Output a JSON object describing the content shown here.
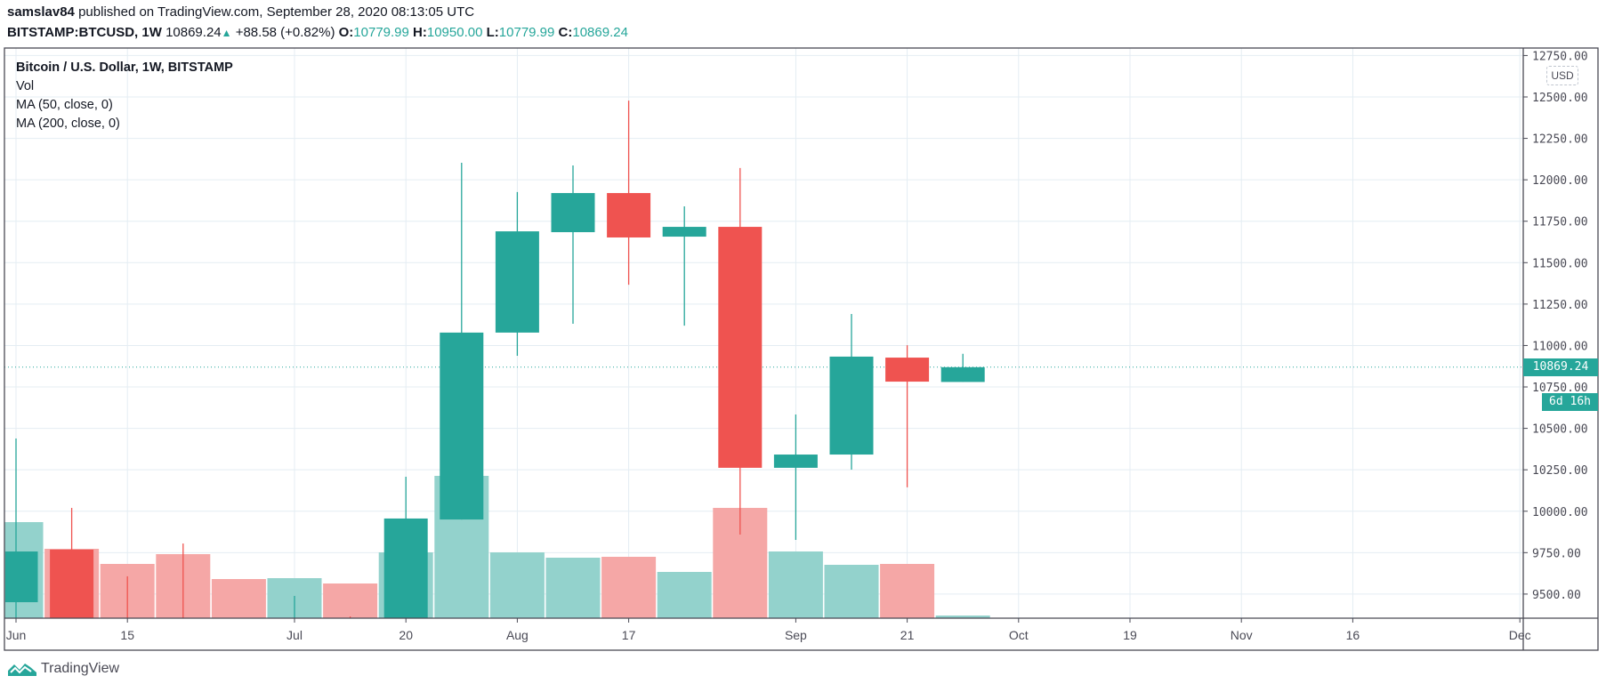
{
  "header": {
    "author": "samslav84",
    "published": "published on TradingView.com, September 28, 2020 08:13:05 UTC",
    "symbol": "BITSTAMP:BTCUSD, 1W",
    "last": "10869.24",
    "change": "+88.58 (+0.82%)",
    "o_label": "O:",
    "o": "10779.99",
    "h_label": "H:",
    "h": "10950.00",
    "l_label": "L:",
    "l": "10779.99",
    "c_label": "C:",
    "c": "10869.24"
  },
  "legend": {
    "title": "Bitcoin / U.S. Dollar, 1W, BITSTAMP",
    "vol": "Vol",
    "ma50": "MA (50, close, 0)",
    "ma200": "MA (200, close, 0)"
  },
  "price_axis": {
    "currency": "USD",
    "last_price_label": "10869.24",
    "countdown": "6d 16h"
  },
  "footer": {
    "brand": "TradingView"
  },
  "colors": {
    "up": "#26a69a",
    "down": "#ef5350",
    "vol_up": "#93d2cc",
    "vol_down": "#f5a7a6",
    "grid": "#e4edf3"
  },
  "chart_data": {
    "type": "candlestick",
    "title": "Bitcoin / U.S. Dollar, 1W, BITSTAMP",
    "ylim": [
      9355,
      12800
    ],
    "y_ticks": [
      9500,
      9750,
      10000,
      10250,
      10500,
      10750,
      11000,
      11250,
      11500,
      11750,
      12000,
      12250,
      12500,
      12750
    ],
    "y_tick_labels": [
      "9500.00",
      "9750.00",
      "10000.00",
      "10250.00",
      "10500.00",
      "10750.00",
      "11000.00",
      "11250.00",
      "11500.00",
      "11750.00",
      "12000.00",
      "12250.00",
      "12500.00",
      "12750.00"
    ],
    "x_range_weeks": [
      -0.2,
      27.3
    ],
    "x_ticks": [
      {
        "label": "Jun",
        "week": 0
      },
      {
        "label": "15",
        "week": 2
      },
      {
        "label": "Jul",
        "week": 5
      },
      {
        "label": "20",
        "week": 7
      },
      {
        "label": "Aug",
        "week": 9
      },
      {
        "label": "17",
        "week": 11
      },
      {
        "label": "Sep",
        "week": 14
      },
      {
        "label": "21",
        "week": 16
      },
      {
        "label": "Oct",
        "week": 18
      },
      {
        "label": "19",
        "week": 20
      },
      {
        "label": "Nov",
        "week": 22
      },
      {
        "label": "16",
        "week": 24
      },
      {
        "label": "Dec",
        "week": 27
      }
    ],
    "last_price": 10869.24,
    "candles": [
      {
        "week": "Jun 1",
        "o": 9451,
        "h": 10439,
        "l": 9300,
        "c": 9757
      },
      {
        "week": "Jun 8",
        "o": 9768,
        "h": 10020,
        "l": 9150,
        "c": 9340
      },
      {
        "week": "Jun 15",
        "o": 9340,
        "h": 9607,
        "l": 8950,
        "c": 9300
      },
      {
        "week": "Jun 22",
        "o": 9300,
        "h": 9805,
        "l": 8800,
        "c": 9000
      },
      {
        "week": "Jun 29",
        "o": 9000,
        "h": 9300,
        "l": 8900,
        "c": 9070
      },
      {
        "week": "Jul 6",
        "o": 9070,
        "h": 9489,
        "l": 9050,
        "c": 9230
      },
      {
        "week": "Jul 13",
        "o": 9230,
        "h": 9365,
        "l": 9000,
        "c": 9160
      },
      {
        "week": "Jul 20",
        "o": 9160,
        "h": 10208,
        "l": 9100,
        "c": 9956
      },
      {
        "week": "Jul 27",
        "o": 9950,
        "h": 12103,
        "l": 9950,
        "c": 11078
      },
      {
        "week": "Aug 3",
        "o": 11078,
        "h": 11926,
        "l": 10938,
        "c": 11689
      },
      {
        "week": "Aug 10",
        "o": 11684,
        "h": 12087,
        "l": 11131,
        "c": 11920
      },
      {
        "week": "Aug 17",
        "o": 11920,
        "h": 12478,
        "l": 11367,
        "c": 11652
      },
      {
        "week": "Aug 24",
        "o": 11657,
        "h": 11840,
        "l": 11120,
        "c": 11716
      },
      {
        "week": "Aug 31",
        "o": 11716,
        "h": 12071,
        "l": 9859,
        "c": 10262
      },
      {
        "week": "Sep 7",
        "o": 10262,
        "h": 10584,
        "l": 9827,
        "c": 10342
      },
      {
        "week": "Sep 14",
        "o": 10342,
        "h": 11190,
        "l": 10251,
        "c": 10933
      },
      {
        "week": "Sep 21",
        "o": 10927,
        "h": 11002,
        "l": 10144,
        "c": 10782
      },
      {
        "week": "Sep 28",
        "o": 10779.99,
        "h": 10950,
        "l": 10779.99,
        "c": 10869.24
      }
    ],
    "volume_relative": [
      108,
      78,
      61,
      72,
      44,
      45,
      39,
      74,
      160,
      74,
      68,
      69,
      52,
      124,
      75,
      60,
      61,
      3
    ],
    "volume_direction": [
      "up",
      "down",
      "down",
      "down",
      "down",
      "up",
      "down",
      "up",
      "up",
      "up",
      "up",
      "down",
      "up",
      "down",
      "up",
      "up",
      "down",
      "up"
    ]
  }
}
